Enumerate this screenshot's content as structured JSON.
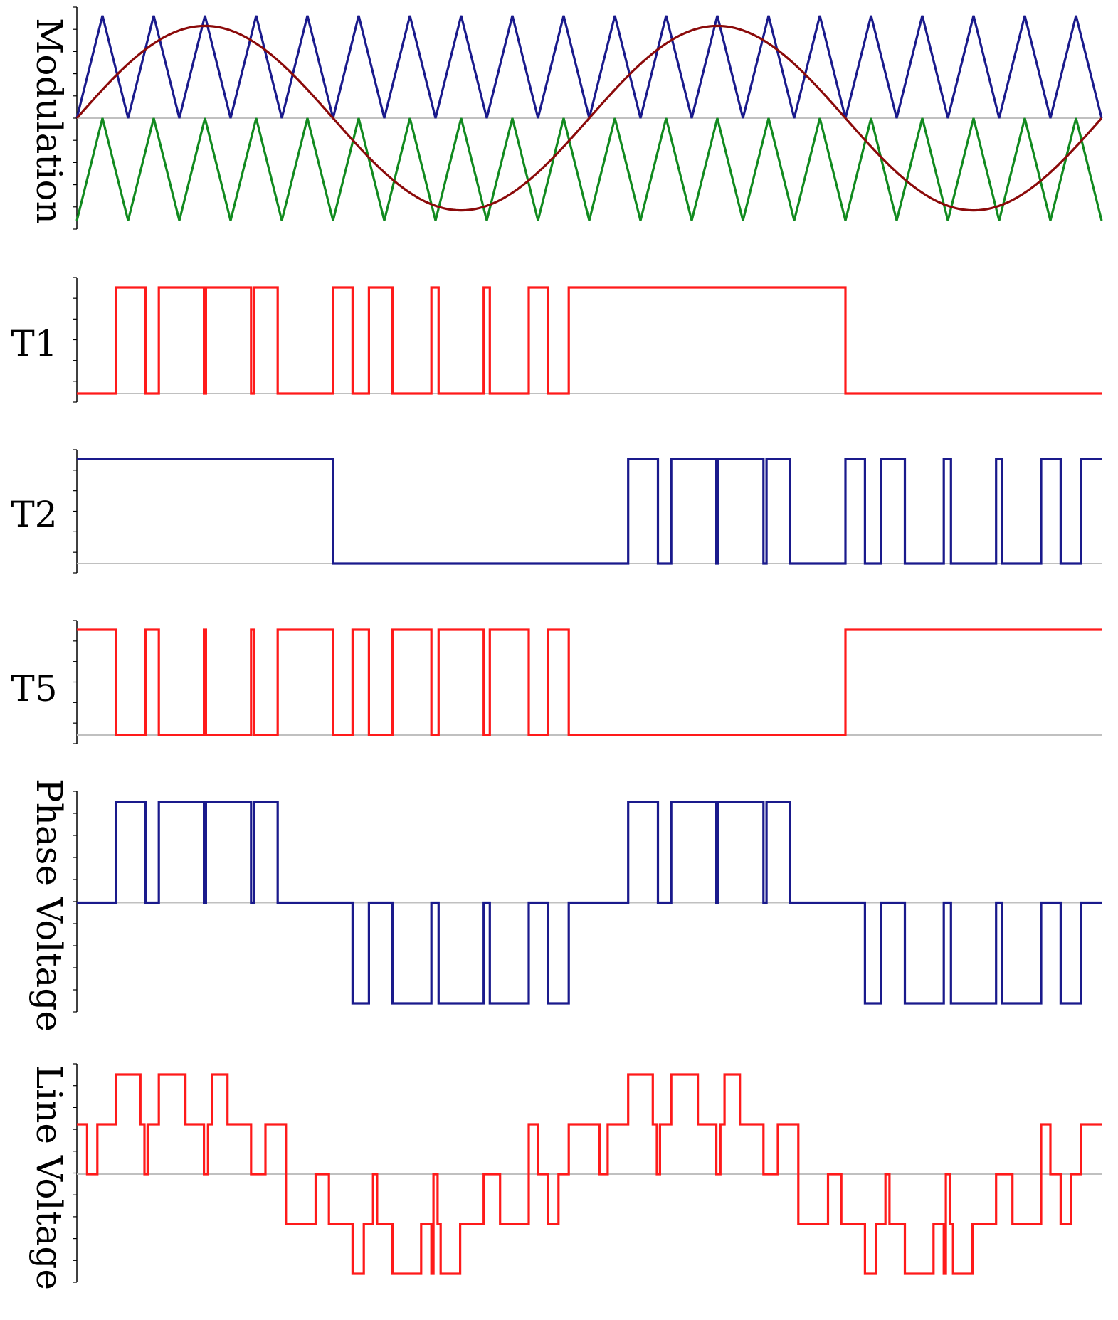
{
  "chart_data": {
    "type": "line",
    "description_note": "Multilevel (5-level) phase-disposition carrier PWM: two carriers, sinusoidal reference, switching signals T1/T2/T5, phase and line voltage. x in fraction of 2 fundamental periods (0-1).",
    "colors": {
      "carrier_upper": "#1a1a8c",
      "carrier_lower": "#118a1f",
      "reference": "#8b0a0a",
      "red_trace": "#ff1a1a",
      "blue_trace": "#1a1a8c",
      "zero_line": "#c0c0c0",
      "axis": "#000000"
    },
    "panels": [
      {
        "id": "modulation",
        "label": "Modulation",
        "ylim": [
          -1,
          1
        ],
        "series": [
          {
            "name": "Upper carrier",
            "kind": "triangle",
            "color_key": "carrier_upper",
            "cycles": 20,
            "min": 0,
            "max": 1,
            "phase_start": "low"
          },
          {
            "name": "Lower carrier",
            "kind": "triangle",
            "color_key": "carrier_lower",
            "cycles": 20,
            "min": -1,
            "max": 0,
            "phase_start": "low"
          },
          {
            "name": "Reference",
            "kind": "sine",
            "color_key": "reference",
            "amplitude": 0.9,
            "periods": 2
          }
        ]
      },
      {
        "id": "t1",
        "label": "T1",
        "ylim": [
          0,
          1
        ],
        "series": [
          {
            "name": "T1",
            "kind": "step",
            "color_key": "red_trace",
            "initial": 0,
            "edges": [
              0.038,
              0.067,
              0.08,
              0.124,
              0.126,
              0.17,
              0.173,
              0.196,
              0.25,
              0.269,
              0.285,
              0.308,
              0.346,
              0.353,
              0.397,
              0.403,
              0.441,
              0.46,
              0.48,
              0.75
            ]
          }
        ]
      },
      {
        "id": "t2",
        "label": "T2",
        "ylim": [
          0,
          1
        ],
        "series": [
          {
            "name": "T2",
            "kind": "step",
            "color_key": "blue_trace",
            "initial": 1,
            "edges": [
              0.25,
              0.538,
              0.567,
              0.58,
              0.624,
              0.626,
              0.67,
              0.673,
              0.696,
              0.75,
              0.769,
              0.785,
              0.808,
              0.846,
              0.853,
              0.897,
              0.903,
              0.941,
              0.96,
              0.98
            ]
          }
        ]
      },
      {
        "id": "t5",
        "label": "T5",
        "ylim": [
          0,
          1
        ],
        "series": [
          {
            "name": "T5",
            "kind": "step",
            "color_key": "red_trace",
            "initial": 1,
            "edges": [
              0.038,
              0.067,
              0.08,
              0.124,
              0.126,
              0.17,
              0.173,
              0.196,
              0.25,
              0.269,
              0.285,
              0.308,
              0.346,
              0.353,
              0.397,
              0.403,
              0.441,
              0.46,
              0.48,
              0.75
            ]
          }
        ]
      },
      {
        "id": "phase",
        "label": "Phase Voltage",
        "ylim": [
          -1,
          1
        ],
        "series": [
          {
            "name": "Phase Voltage",
            "kind": "steps",
            "color_key": "blue_trace",
            "points": [
              [
                0,
                0
              ],
              [
                0.038,
                1
              ],
              [
                0.067,
                0
              ],
              [
                0.08,
                1
              ],
              [
                0.124,
                0
              ],
              [
                0.126,
                1
              ],
              [
                0.17,
                0
              ],
              [
                0.173,
                1
              ],
              [
                0.196,
                0
              ],
              [
                0.269,
                -1
              ],
              [
                0.285,
                0
              ],
              [
                0.308,
                -1
              ],
              [
                0.346,
                0
              ],
              [
                0.353,
                -1
              ],
              [
                0.397,
                0
              ],
              [
                0.403,
                -1
              ],
              [
                0.441,
                0
              ],
              [
                0.46,
                -1
              ],
              [
                0.48,
                0
              ],
              [
                0.538,
                1
              ],
              [
                0.567,
                0
              ],
              [
                0.58,
                1
              ],
              [
                0.624,
                0
              ],
              [
                0.626,
                1
              ],
              [
                0.67,
                0
              ],
              [
                0.673,
                1
              ],
              [
                0.696,
                0
              ],
              [
                0.769,
                -1
              ],
              [
                0.785,
                0
              ],
              [
                0.808,
                -1
              ],
              [
                0.846,
                0
              ],
              [
                0.853,
                -1
              ],
              [
                0.897,
                0
              ],
              [
                0.903,
                -1
              ],
              [
                0.941,
                0
              ],
              [
                0.96,
                -1
              ],
              [
                0.98,
                0
              ],
              [
                1,
                0
              ]
            ]
          }
        ]
      },
      {
        "id": "line",
        "label": "Line Voltage",
        "ylim": [
          -2,
          2
        ],
        "series": [
          {
            "name": "Line Voltage",
            "kind": "steps",
            "color_key": "red_trace",
            "points": [
              [
                0,
                1
              ],
              [
                0.01,
                0
              ],
              [
                0.02,
                1
              ],
              [
                0.038,
                2
              ],
              [
                0.062,
                1
              ],
              [
                0.066,
                0
              ],
              [
                0.069,
                1
              ],
              [
                0.08,
                2
              ],
              [
                0.106,
                1
              ],
              [
                0.124,
                0
              ],
              [
                0.128,
                1
              ],
              [
                0.132,
                2
              ],
              [
                0.147,
                1
              ],
              [
                0.17,
                0
              ],
              [
                0.184,
                1
              ],
              [
                0.204,
                -1
              ],
              [
                0.233,
                0
              ],
              [
                0.246,
                -1
              ],
              [
                0.269,
                -2
              ],
              [
                0.28,
                -1
              ],
              [
                0.289,
                0
              ],
              [
                0.293,
                -1
              ],
              [
                0.308,
                -2
              ],
              [
                0.336,
                -1
              ],
              [
                0.346,
                -2
              ],
              [
                0.348,
                0
              ],
              [
                0.352,
                -1
              ],
              [
                0.355,
                -2
              ],
              [
                0.374,
                -1
              ],
              [
                0.397,
                0
              ],
              [
                0.413,
                -1
              ],
              [
                0.441,
                1
              ],
              [
                0.45,
                0
              ],
              [
                0.46,
                -1
              ],
              [
                0.47,
                0
              ],
              [
                0.48,
                1
              ],
              [
                0.51,
                0
              ],
              [
                0.518,
                1
              ],
              [
                0.538,
                2
              ],
              [
                0.562,
                1
              ],
              [
                0.566,
                0
              ],
              [
                0.569,
                1
              ],
              [
                0.58,
                2
              ],
              [
                0.606,
                1
              ],
              [
                0.624,
                0
              ],
              [
                0.628,
                1
              ],
              [
                0.632,
                2
              ],
              [
                0.647,
                1
              ],
              [
                0.67,
                0
              ],
              [
                0.684,
                1
              ],
              [
                0.704,
                -1
              ],
              [
                0.733,
                0
              ],
              [
                0.746,
                -1
              ],
              [
                0.769,
                -2
              ],
              [
                0.78,
                -1
              ],
              [
                0.789,
                0
              ],
              [
                0.793,
                -1
              ],
              [
                0.808,
                -2
              ],
              [
                0.836,
                -1
              ],
              [
                0.846,
                -2
              ],
              [
                0.848,
                0
              ],
              [
                0.852,
                -1
              ],
              [
                0.855,
                -2
              ],
              [
                0.874,
                -1
              ],
              [
                0.897,
                0
              ],
              [
                0.913,
                -1
              ],
              [
                0.941,
                1
              ],
              [
                0.95,
                0
              ],
              [
                0.96,
                -1
              ],
              [
                0.97,
                0
              ],
              [
                0.98,
                1
              ],
              [
                1,
                1
              ]
            ]
          }
        ]
      }
    ]
  }
}
